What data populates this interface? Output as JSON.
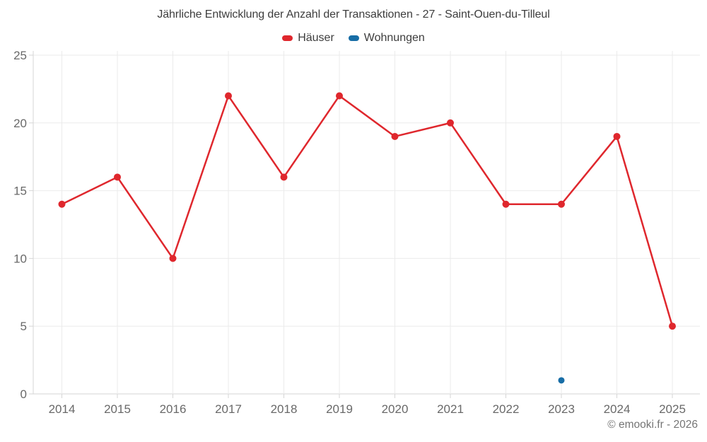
{
  "chart_data": {
    "type": "line",
    "title": "Jährliche Entwicklung der Anzahl der Transaktionen - 27 - Saint-Ouen-du-Tilleul",
    "categories": [
      "2014",
      "2015",
      "2016",
      "2017",
      "2018",
      "2019",
      "2020",
      "2021",
      "2022",
      "2023",
      "2024",
      "2025"
    ],
    "series": [
      {
        "name": "Häuser",
        "color": "#df272d",
        "values": [
          14,
          16,
          10,
          22,
          16,
          22,
          19,
          20,
          14,
          14,
          19,
          5
        ]
      },
      {
        "name": "Wohnungen",
        "color": "#176da6",
        "values": [
          null,
          null,
          null,
          null,
          null,
          null,
          null,
          null,
          null,
          1,
          null,
          null
        ]
      }
    ],
    "xlabel": "",
    "ylabel": "",
    "ylim": [
      0,
      25
    ],
    "yticks": [
      0,
      5,
      10,
      15,
      20,
      25
    ],
    "grid": true,
    "legend_position": "top"
  },
  "footer": {
    "copyright": "© emooki.fr - 2026"
  },
  "colors": {
    "background": "#ffffff",
    "grid": "#ebebeb",
    "axis": "#d6d6d6",
    "title_text": "#3d3d3d",
    "legend_text": "#3d3d3d",
    "axis_label_text": "#696969",
    "copyright_text": "#757575"
  }
}
